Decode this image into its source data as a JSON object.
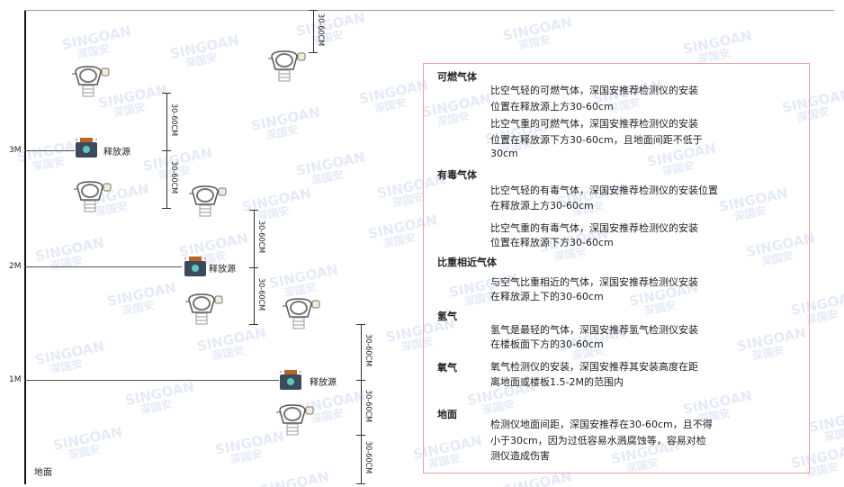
{
  "watermark": {
    "brand": "SINGOAN",
    "cn": "深国安"
  },
  "levels": {
    "l3": "3M",
    "l2": "2M",
    "l1": "1M",
    "floor": "地面"
  },
  "source_label": "释放源",
  "dimension_label": "30-60CM",
  "notes": [
    {
      "heading": "可燃气体",
      "paragraphs": [
        [
          "比空气轻的可燃气体，深国安推荐检测仪的安装",
          "位置在释放源上方30-60cm"
        ],
        [
          "比空气重的可燃气体，深国安推荐检测仪的安装",
          "位置在释放源下方30-60cm，且地面间距不低于",
          "30cm"
        ]
      ]
    },
    {
      "heading": "有毒气体",
      "paragraphs": [
        [
          "比空气轻的有毒气体，深国安推荐检测仪的安装位置",
          "在释放源上方30-60cm"
        ],
        [
          "比空气重的有毒气体，深国安推荐检测仪的安装",
          "位置在释放源下方30-60cm"
        ]
      ]
    },
    {
      "heading": "比重相近气体",
      "paragraphs": [
        [
          "与空气比重相近的气体，深国安推荐检测仪安装",
          "在释放源上下的30-60cm"
        ]
      ]
    },
    {
      "heading": "氢气",
      "paragraphs": [
        [
          "氢气是最轻的气体，深国安推荐氢气检测仪安装",
          "在楼板面下方的30-60cm"
        ]
      ]
    },
    {
      "heading": "氧气",
      "paragraphs": [
        [
          "氧气检测仪的安装，深国安推荐其安装高度在距",
          "离地面或楼板1.5-2M的范围内"
        ]
      ]
    },
    {
      "heading": "地面",
      "paragraphs": [
        [
          "检测仪地面间距，深国安推荐在30-60cm，且不得",
          "小于30cm，因为过低容易水溅腐蚀等，容易对检",
          "测仪造成伤害"
        ]
      ]
    }
  ]
}
